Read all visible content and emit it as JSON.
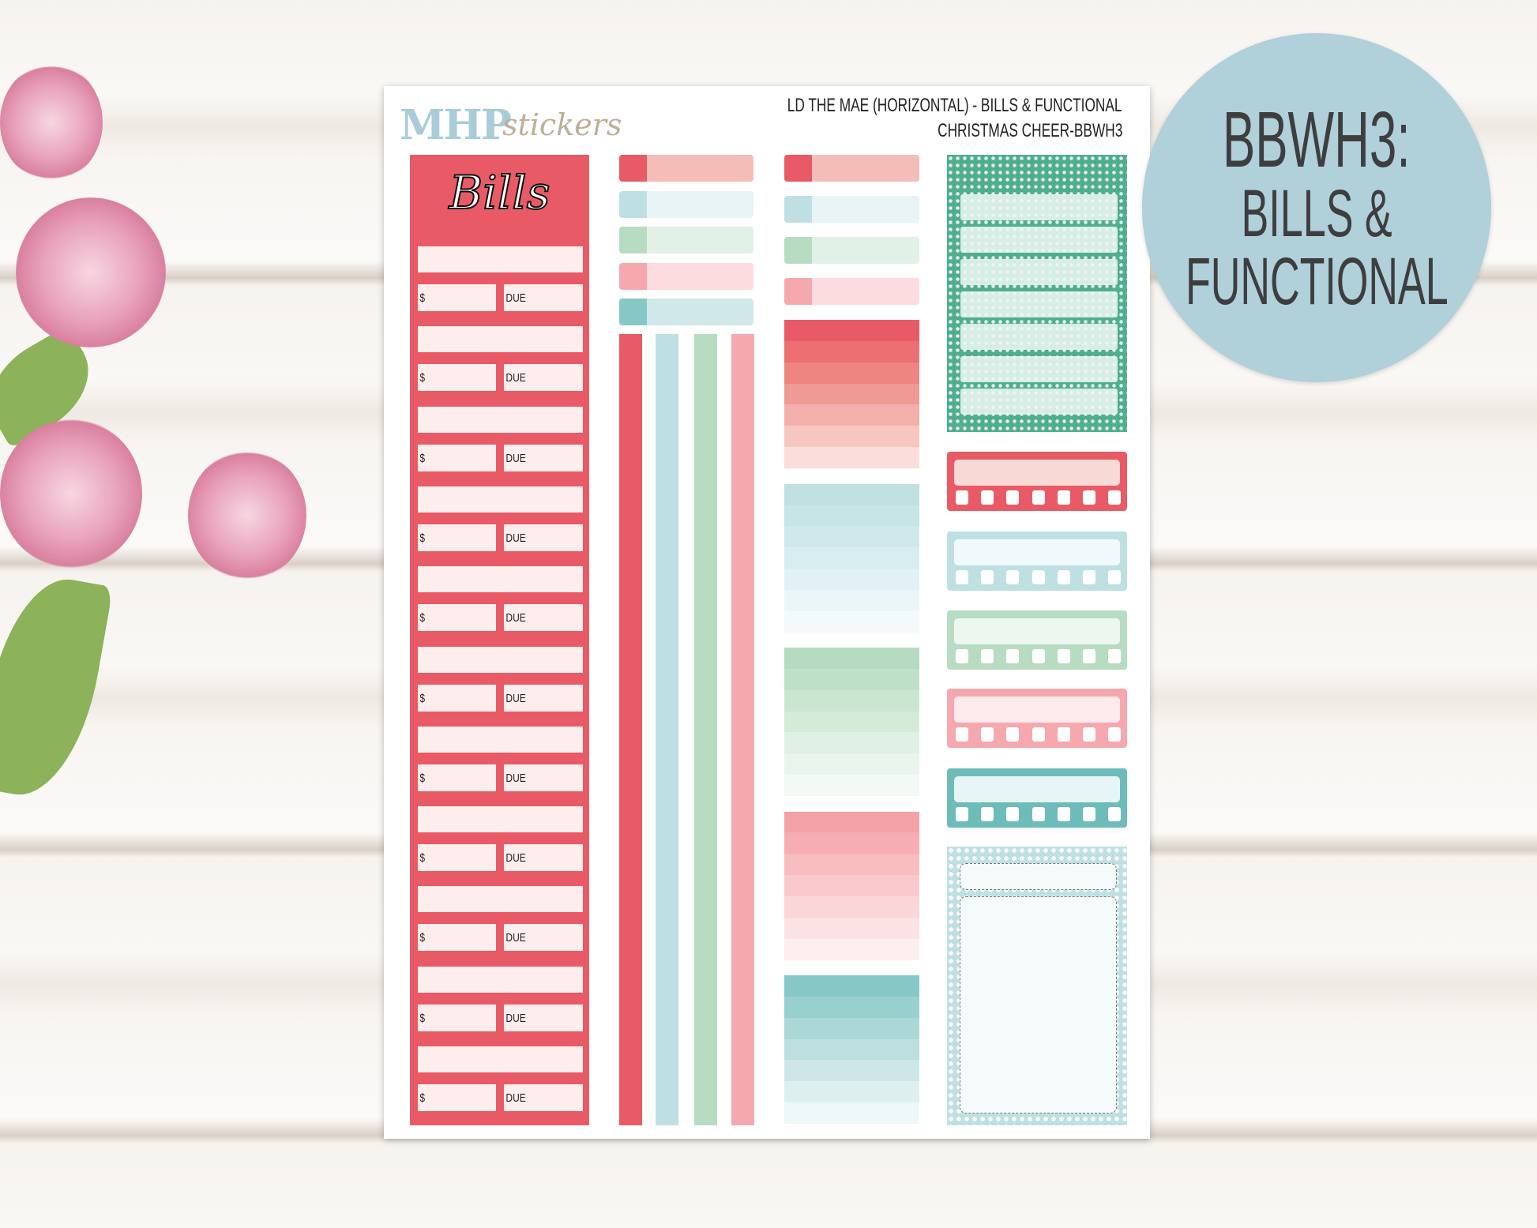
{
  "sheet": {
    "logo": {
      "bold": "MHP",
      "script": "stickers"
    },
    "header": {
      "line1": "LD THE MAE (HORIZONTAL) - BILLS & FUNCTIONAL",
      "line2": "CHRISTMAS CHEER-BBWH3"
    },
    "bills": {
      "title": "Bills",
      "amount_label": "$",
      "due_label": "DUE",
      "entries": 11
    },
    "colors": {
      "red": "#e85b66",
      "light_red": "#f5bdb8",
      "blue": "#bfe0e3",
      "light_blue": "#e8f4f6",
      "green": "#b7dcc2",
      "light_green": "#e2f1e6",
      "pink": "#f5a8ae",
      "light_pink": "#fcdcdf",
      "teal": "#86c8c6",
      "light_teal": "#d0e8ea",
      "dark_green": "#4fae8e"
    },
    "tabs_col2": [
      "red",
      "blue",
      "green",
      "pink",
      "teal"
    ],
    "tabs_col3": [
      "red",
      "blue",
      "green",
      "pink"
    ],
    "strips": [
      "red",
      "blue",
      "green",
      "pink"
    ],
    "gradients": [
      [
        "#e85b66",
        "#ec6f72",
        "#ee8580",
        "#f09a94",
        "#f3b0aa",
        "#f7c6c1",
        "#fbdedb"
      ],
      [
        "#c0e0e3",
        "#c7e4e7",
        "#cfe8eb",
        "#d8edf1",
        "#e1f1f6",
        "#ebf6f9",
        "#f4fafb"
      ],
      [
        "#b5dbc0",
        "#bfe0c8",
        "#cae6d1",
        "#d5ebda",
        "#e0f0e4",
        "#e9f5ec",
        "#f3f9f5"
      ],
      [
        "#f4a1a8",
        "#f6aeb4",
        "#f8bcc1",
        "#f9c9cd",
        "#fad6d9",
        "#fbe2e4",
        "#fdeff0"
      ],
      [
        "#86c8c6",
        "#98d0ce",
        "#aad8d7",
        "#bcdfdf",
        "#cde7e8",
        "#deeff0",
        "#eef8f8"
      ]
    ],
    "trackers": [
      {
        "frame": "#e85b66",
        "bar": "#f9d9d5"
      },
      {
        "frame": "#bfe0e3",
        "bar": "#f2f9fa"
      },
      {
        "frame": "#b7dcc2",
        "bar": "#edf7f0"
      },
      {
        "frame": "#f5a8ae",
        "bar": "#fdeaec"
      },
      {
        "frame": "#6dbcb9",
        "bar": "#e8f5f5"
      }
    ]
  },
  "badge": {
    "line1": "BBWH3:",
    "line2": "BILLS &",
    "line3": "FUNCTIONAL"
  }
}
